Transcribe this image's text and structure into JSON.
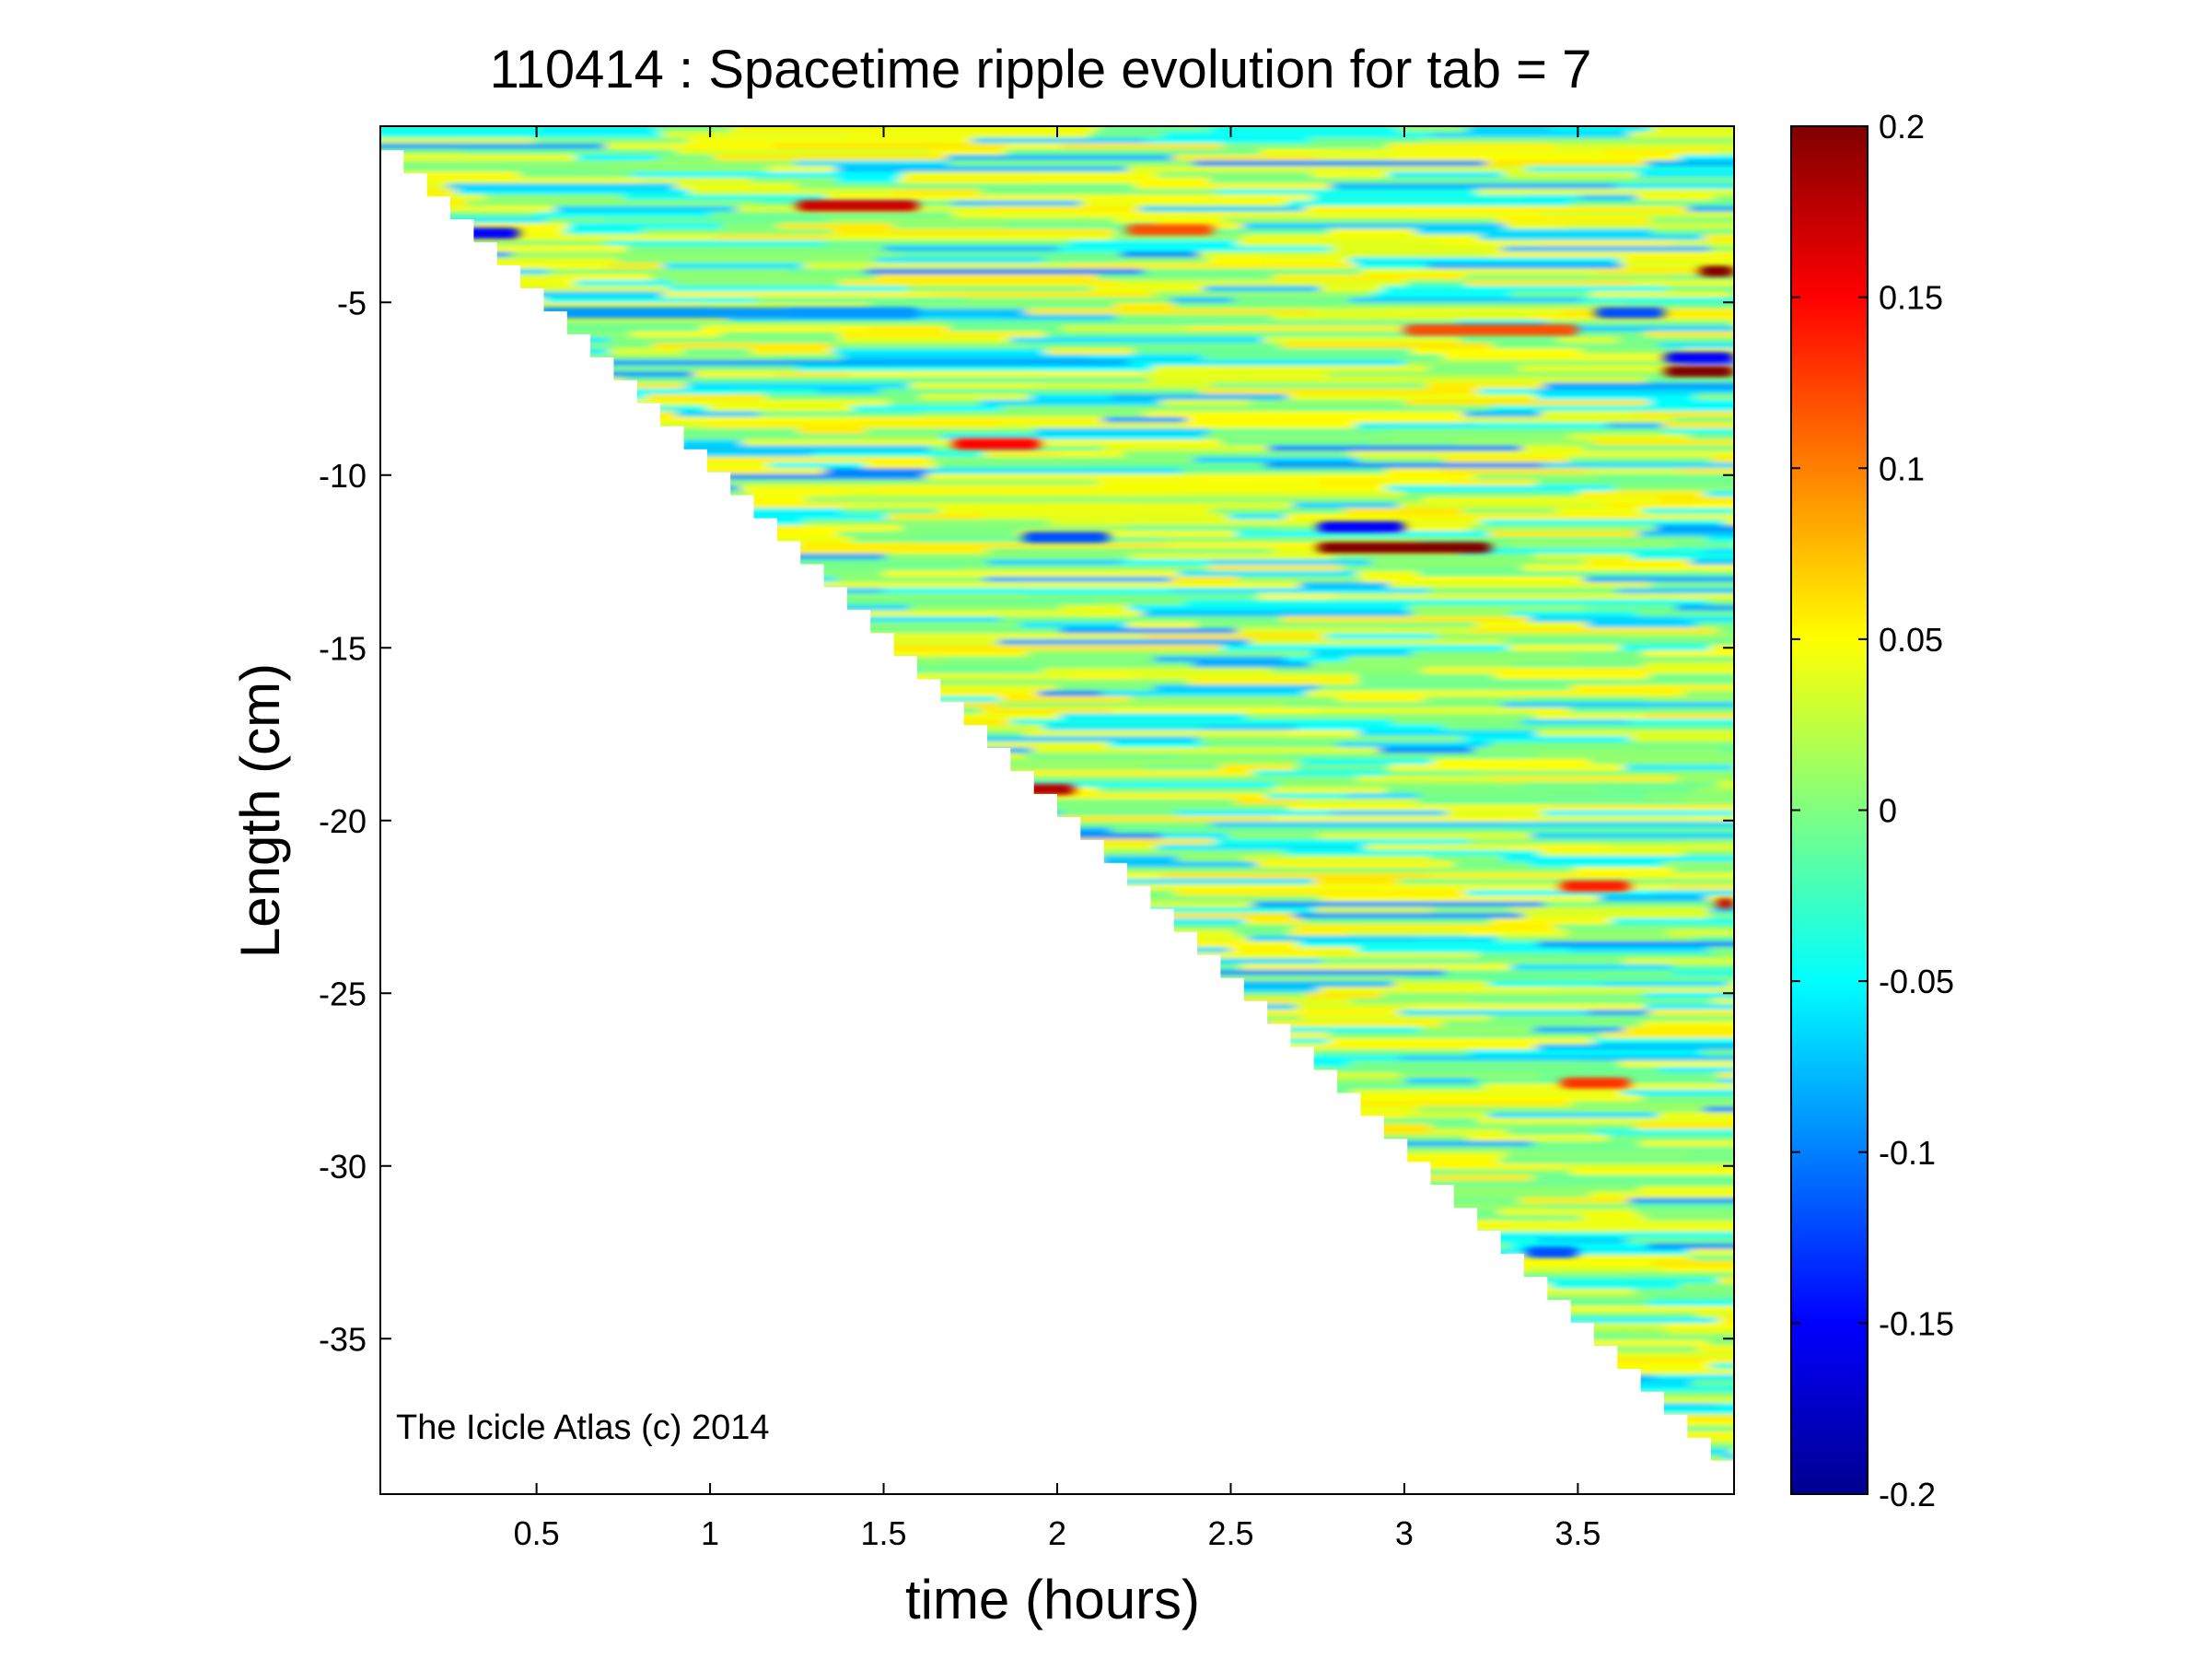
{
  "chart_data": {
    "type": "heatmap",
    "title": "110414 : Spacetime ripple evolution for tab = 7",
    "xlabel": "time (hours)",
    "ylabel": "Length (cm)",
    "xlim": [
      0.05,
      3.95
    ],
    "ylim": [
      -39.5,
      0.1
    ],
    "x_ticks": [
      0.5,
      1,
      1.5,
      2,
      2.5,
      3,
      3.5
    ],
    "x_tick_labels": [
      "0.5",
      "1",
      "1.5",
      "2",
      "2.5",
      "3",
      "3.5"
    ],
    "y_ticks": [
      -5,
      -10,
      -15,
      -20,
      -25,
      -30,
      -35
    ],
    "y_tick_labels": [
      "-5",
      "-10",
      "-15",
      "-20",
      "-25",
      "-30",
      "-35"
    ],
    "colorbar": {
      "colormap": "jet",
      "range": [
        -0.2,
        0.2
      ],
      "ticks": [
        0.2,
        0.15,
        0.1,
        0.05,
        0,
        -0.05,
        -0.1,
        -0.15,
        -0.2
      ],
      "tick_labels": [
        "0.2",
        "0.15",
        "0.1",
        "0.05",
        "0",
        "-0.05",
        "-0.1",
        "-0.15",
        "-0.2"
      ]
    },
    "growth_front": {
      "description_points_time_length": [
        [
          0.05,
          -0.6
        ],
        [
          3.95,
          -39.2
        ]
      ]
    },
    "features": [
      {
        "t_start": 1.25,
        "t_end": 1.6,
        "length": -2.2,
        "value": 0.17
      },
      {
        "t_start": 0.25,
        "t_end": 0.45,
        "length": -3.0,
        "value": -0.15
      },
      {
        "t_start": 1.7,
        "t_end": 1.95,
        "length": -9.1,
        "value": 0.15
      },
      {
        "t_start": 1.9,
        "t_end": 2.05,
        "length": -19.1,
        "value": 0.18
      },
      {
        "t_start": 2.75,
        "t_end": 3.25,
        "length": -12.1,
        "value": 0.2
      },
      {
        "t_start": 2.75,
        "t_end": 3.0,
        "length": -11.5,
        "value": -0.15
      },
      {
        "t_start": 3.75,
        "t_end": 3.95,
        "length": -7.0,
        "value": 0.2
      },
      {
        "t_start": 3.75,
        "t_end": 3.95,
        "length": -6.6,
        "value": -0.15
      },
      {
        "t_start": 3.85,
        "t_end": 3.95,
        "length": -4.1,
        "value": 0.2
      },
      {
        "t_start": 3.0,
        "t_end": 3.5,
        "length": -5.8,
        "value": 0.12
      },
      {
        "t_start": 3.55,
        "t_end": 3.75,
        "length": -5.3,
        "value": -0.12
      },
      {
        "t_start": 3.45,
        "t_end": 3.65,
        "length": -21.9,
        "value": 0.14
      },
      {
        "t_start": 3.45,
        "t_end": 3.65,
        "length": -27.6,
        "value": 0.13
      },
      {
        "t_start": 3.35,
        "t_end": 3.5,
        "length": -32.5,
        "value": -0.12
      },
      {
        "t_start": 3.9,
        "t_end": 3.95,
        "length": -22.4,
        "value": 0.17
      },
      {
        "t_start": 1.9,
        "t_end": 2.15,
        "length": -11.8,
        "value": -0.12
      },
      {
        "t_start": 2.2,
        "t_end": 2.45,
        "length": -2.9,
        "value": 0.12
      },
      {
        "t_start": 0.5,
        "t_end": 1.6,
        "length": -5.3,
        "value": -0.09
      }
    ]
  },
  "watermark": "The Icicle Atlas (c) 2014"
}
